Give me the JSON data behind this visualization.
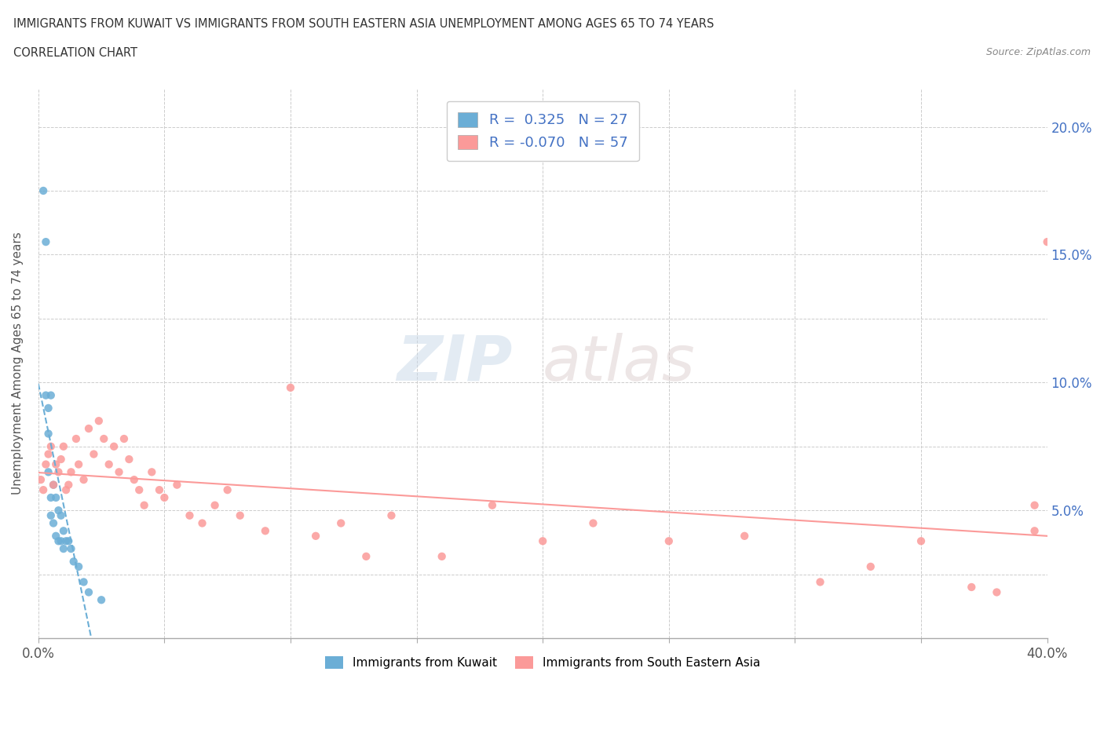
{
  "title_line1": "IMMIGRANTS FROM KUWAIT VS IMMIGRANTS FROM SOUTH EASTERN ASIA UNEMPLOYMENT AMONG AGES 65 TO 74 YEARS",
  "title_line2": "CORRELATION CHART",
  "source_text": "Source: ZipAtlas.com",
  "ylabel": "Unemployment Among Ages 65 to 74 years",
  "xlim": [
    0.0,
    0.4
  ],
  "ylim": [
    0.0,
    0.215
  ],
  "xtick_positions": [
    0.0,
    0.05,
    0.1,
    0.15,
    0.2,
    0.25,
    0.3,
    0.35,
    0.4
  ],
  "xtick_labels": [
    "0.0%",
    "",
    "",
    "",
    "",
    "",
    "",
    "",
    "40.0%"
  ],
  "ytick_positions": [
    0.0,
    0.025,
    0.05,
    0.075,
    0.1,
    0.125,
    0.15,
    0.175,
    0.2
  ],
  "ytick_labels": [
    "",
    "",
    "5.0%",
    "",
    "10.0%",
    "",
    "15.0%",
    "",
    "20.0%"
  ],
  "color_kuwait": "#6baed6",
  "color_sea": "#fb9a99",
  "watermark_zip": "ZIP",
  "watermark_atlas": "atlas",
  "legend_r_kuwait": " 0.325",
  "legend_n_kuwait": "27",
  "legend_r_sea": "-0.070",
  "legend_n_sea": "57",
  "kuwait_x": [
    0.002,
    0.003,
    0.003,
    0.004,
    0.004,
    0.004,
    0.005,
    0.005,
    0.005,
    0.006,
    0.006,
    0.007,
    0.007,
    0.008,
    0.008,
    0.009,
    0.009,
    0.01,
    0.01,
    0.011,
    0.012,
    0.013,
    0.014,
    0.016,
    0.018,
    0.02,
    0.025
  ],
  "kuwait_y": [
    0.175,
    0.155,
    0.095,
    0.09,
    0.08,
    0.065,
    0.095,
    0.055,
    0.048,
    0.06,
    0.045,
    0.055,
    0.04,
    0.05,
    0.038,
    0.048,
    0.038,
    0.042,
    0.035,
    0.038,
    0.038,
    0.035,
    0.03,
    0.028,
    0.022,
    0.018,
    0.015
  ],
  "sea_x": [
    0.001,
    0.002,
    0.003,
    0.004,
    0.005,
    0.006,
    0.007,
    0.008,
    0.009,
    0.01,
    0.011,
    0.012,
    0.013,
    0.015,
    0.016,
    0.018,
    0.02,
    0.022,
    0.024,
    0.026,
    0.028,
    0.03,
    0.032,
    0.034,
    0.036,
    0.038,
    0.04,
    0.042,
    0.045,
    0.048,
    0.05,
    0.055,
    0.06,
    0.065,
    0.07,
    0.075,
    0.08,
    0.09,
    0.1,
    0.11,
    0.12,
    0.13,
    0.14,
    0.16,
    0.18,
    0.2,
    0.22,
    0.25,
    0.28,
    0.31,
    0.33,
    0.35,
    0.37,
    0.395,
    0.4,
    0.395,
    0.38
  ],
  "sea_y": [
    0.062,
    0.058,
    0.068,
    0.072,
    0.075,
    0.06,
    0.068,
    0.065,
    0.07,
    0.075,
    0.058,
    0.06,
    0.065,
    0.078,
    0.068,
    0.062,
    0.082,
    0.072,
    0.085,
    0.078,
    0.068,
    0.075,
    0.065,
    0.078,
    0.07,
    0.062,
    0.058,
    0.052,
    0.065,
    0.058,
    0.055,
    0.06,
    0.048,
    0.045,
    0.052,
    0.058,
    0.048,
    0.042,
    0.098,
    0.04,
    0.045,
    0.032,
    0.048,
    0.032,
    0.052,
    0.038,
    0.045,
    0.038,
    0.04,
    0.022,
    0.028,
    0.038,
    0.02,
    0.052,
    0.155,
    0.042,
    0.018
  ]
}
